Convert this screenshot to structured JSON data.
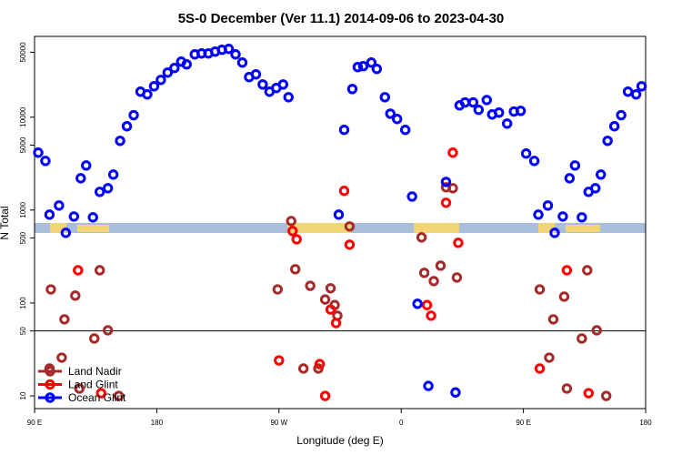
{
  "chart_data": {
    "type": "scatter",
    "title": "5S-0 December (Ver 11.1)   2014-09-06 to 2023-04-30",
    "x_label": "Longitude (deg E)",
    "y_label": "N Total",
    "log_y": true,
    "xlim": [
      90,
      540
    ],
    "ylim": [
      7.3,
      74000
    ],
    "xticks": [
      {
        "value": 90,
        "label": "90 E"
      },
      180,
      {
        "value": 270,
        "label": "90 W"
      },
      {
        "value": 360,
        "label": "0"
      },
      {
        "value": 450,
        "label": "90 E"
      },
      {
        "value": 540,
        "label": "180"
      }
    ],
    "yticks": [
      10,
      50,
      100,
      500,
      1000,
      5000,
      10000,
      50000
    ],
    "hlines": [
      50
    ],
    "legend": "bottom-left",
    "series": [
      {
        "name": "Land Nadir",
        "color": "#a52a2a",
        "x": [
          102,
          101,
          110,
          112,
          120,
          123,
          138,
          134,
          144,
          152,
          269,
          279,
          282,
          288,
          293,
          299,
          304,
          308,
          311,
          313,
          322,
          375,
          377,
          384,
          389,
          393,
          398,
          401,
          462,
          469,
          472,
          480,
          482,
          497,
          493,
          504,
          511
        ],
        "values": [
          140,
          19.7,
          25.8,
          66.7,
          120,
          12,
          225,
          41.5,
          50.8,
          10,
          140,
          762,
          231,
          19.7,
          153,
          19.7,
          109,
          144,
          95,
          73,
          667,
          508,
          211,
          172,
          252,
          1760,
          1720,
          188,
          140,
          25.8,
          66.7,
          117,
          12,
          225,
          41.5,
          50.8,
          10
        ]
      },
      {
        "name": "Land Glint",
        "color": "#ff0000",
        "x": [
          122,
          139,
          270,
          280,
          283,
          300,
          304,
          308,
          312,
          318,
          322,
          379,
          382,
          393,
          398,
          402,
          462,
          482,
          498
        ],
        "values": [
          225,
          10.7,
          24.1,
          596,
          485,
          22,
          10,
          85,
          60.8,
          1610,
          424,
          95,
          73,
          1200,
          4150,
          444,
          19.7,
          225,
          10.7
        ]
      },
      {
        "name": "Ocean Glint",
        "color": "#0000ff",
        "x": [
          92.7,
          98,
          101,
          108,
          113,
          119,
          124,
          128,
          133,
          138,
          144,
          148,
          153,
          158,
          163,
          168,
          173,
          178,
          183,
          188,
          193,
          198,
          202,
          208,
          213,
          218,
          223,
          228,
          233,
          238,
          243,
          248,
          253,
          258,
          263,
          268,
          273,
          277,
          314,
          318,
          324,
          328,
          332,
          338,
          342,
          348,
          352,
          357,
          363,
          368,
          372,
          380,
          393,
          400,
          403,
          407,
          413,
          417,
          423,
          427,
          432,
          438,
          443,
          448,
          452,
          458,
          461,
          468,
          473,
          479,
          484,
          488,
          493,
          498,
          503,
          507,
          512,
          517,
          522,
          527,
          533,
          537
        ],
        "values": [
          4150,
          3380,
          893,
          1120,
          569,
          853,
          2200,
          3020,
          835,
          1570,
          1720,
          2410,
          5560,
          7980,
          10500,
          18800,
          17600,
          21500,
          25200,
          30200,
          33800,
          39600,
          37000,
          47400,
          48500,
          48500,
          50800,
          53100,
          54300,
          47400,
          38700,
          27000,
          28900,
          22500,
          18800,
          20600,
          22500,
          16400,
          893,
          7300,
          20100,
          34600,
          35400,
          38700,
          33100,
          16400,
          10900,
          9560,
          7300,
          1400,
          98,
          12.8,
          2010,
          10.9,
          13400,
          14400,
          14400,
          12000,
          15300,
          10700,
          11200,
          8530,
          11500,
          11700,
          4060,
          3380,
          893,
          1120,
          569,
          853,
          2200,
          3020,
          835,
          1570,
          1720,
          2410,
          5560,
          7980,
          10500,
          18800,
          17600,
          21500
        ]
      }
    ]
  }
}
